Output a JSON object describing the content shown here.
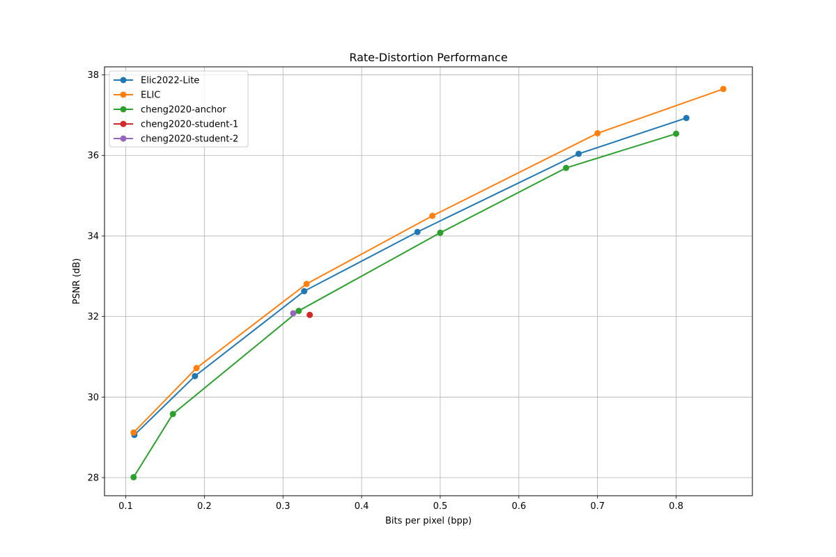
{
  "chart_data": {
    "type": "line",
    "title": "Rate-Distortion Performance",
    "xlabel": "Bits per pixel (bpp)",
    "ylabel": "PSNR (dB)",
    "xlim": [
      0.073,
      0.897
    ],
    "ylim": [
      27.55,
      38.2
    ],
    "xticks": [
      0.1,
      0.2,
      0.3,
      0.4,
      0.5,
      0.6,
      0.7,
      0.8
    ],
    "xtick_labels": [
      "0.1",
      "0.2",
      "0.3",
      "0.4",
      "0.5",
      "0.6",
      "0.7",
      "0.8"
    ],
    "yticks": [
      28,
      30,
      32,
      34,
      36,
      38
    ],
    "ytick_labels": [
      "28",
      "30",
      "32",
      "34",
      "36",
      "38"
    ],
    "grid": true,
    "legend_position": "top-left",
    "series": [
      {
        "name": "Elic2022-Lite",
        "color": "#1f77b4",
        "x": [
          0.111,
          0.188,
          0.327,
          0.471,
          0.676,
          0.813
        ],
        "y": [
          29.06,
          30.52,
          32.63,
          34.1,
          36.04,
          36.93
        ]
      },
      {
        "name": "ELIC",
        "color": "#ff7f0e",
        "x": [
          0.11,
          0.19,
          0.33,
          0.49,
          0.7,
          0.86
        ],
        "y": [
          29.12,
          30.72,
          32.81,
          34.5,
          36.55,
          37.65
        ]
      },
      {
        "name": "cheng2020-anchor",
        "color": "#2ca02c",
        "x": [
          0.11,
          0.16,
          0.32,
          0.5,
          0.66,
          0.8
        ],
        "y": [
          28.01,
          29.58,
          32.14,
          34.08,
          35.69,
          36.54
        ]
      },
      {
        "name": "cheng2020-student-1",
        "color": "#d62728",
        "x": [
          0.334
        ],
        "y": [
          32.04
        ]
      },
      {
        "name": "cheng2020-student-2",
        "color": "#9467bd",
        "x": [
          0.313
        ],
        "y": [
          32.08
        ]
      }
    ]
  }
}
